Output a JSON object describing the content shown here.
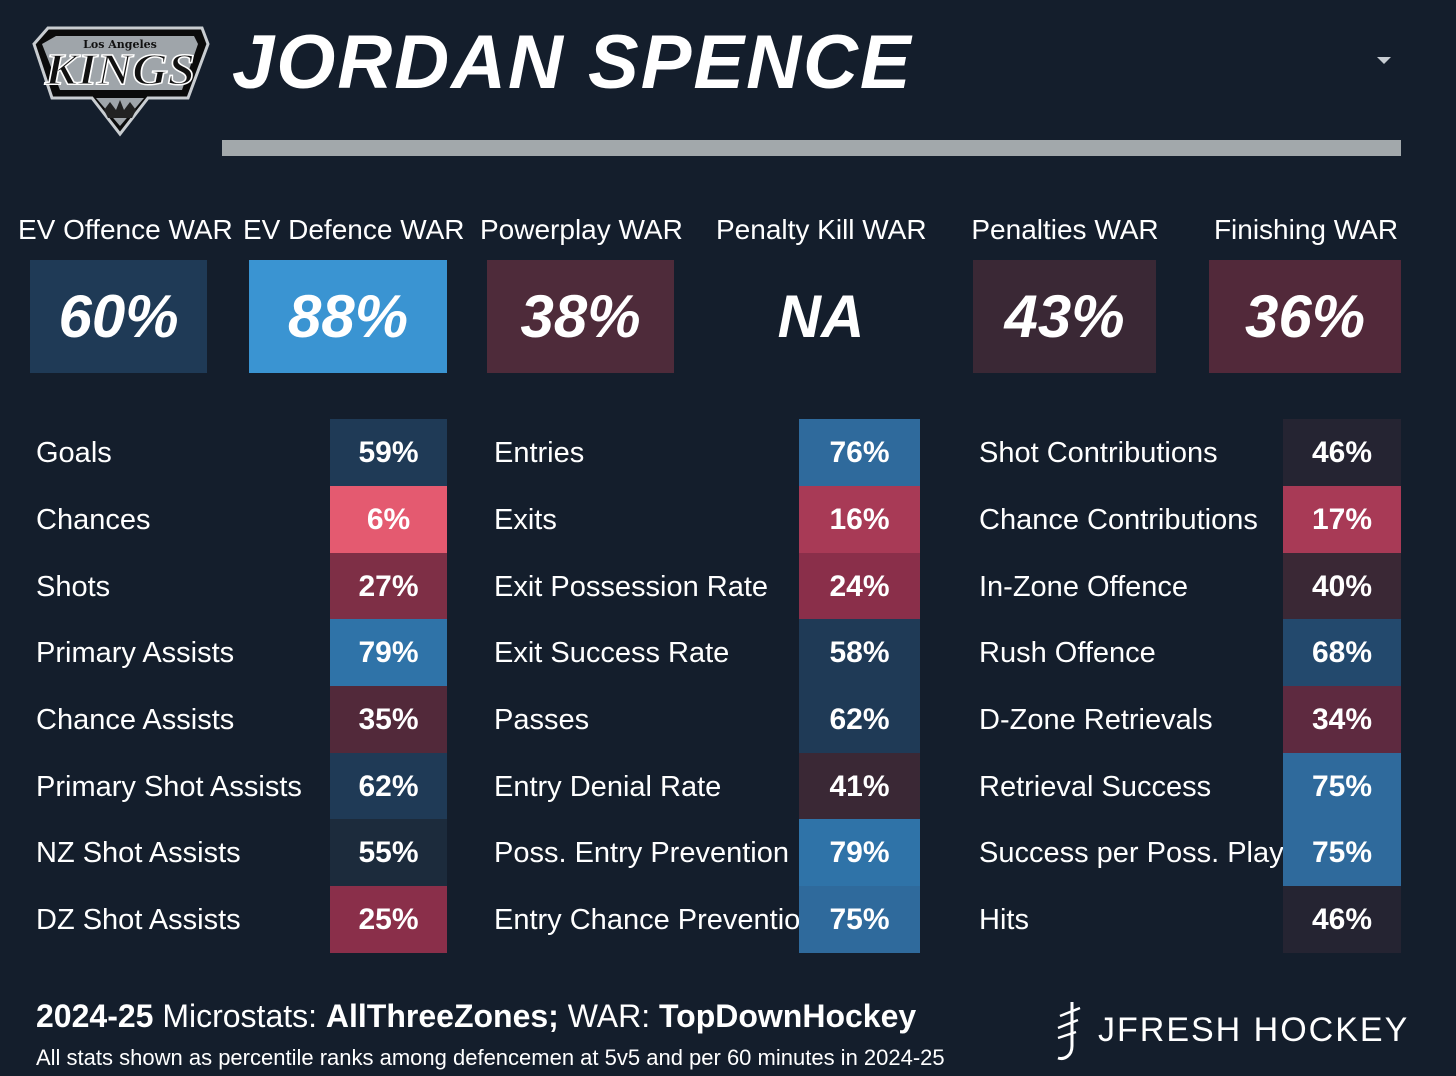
{
  "header": {
    "team_logo": {
      "name": "la-kings-logo",
      "lettering_top": "Los Angeles",
      "lettering_main": "KINGS"
    },
    "player_name": "JORDAN SPENCE"
  },
  "war": [
    {
      "label": "EV Offence WAR",
      "value": "60%",
      "color": "#1f3a56"
    },
    {
      "label": "EV Defence WAR",
      "value": "88%",
      "color": "#3a94d2"
    },
    {
      "label": "Powerplay WAR",
      "value": "38%",
      "color": "#4e2b3a"
    },
    {
      "label": "Penalty Kill WAR",
      "value": "NA",
      "color": "#141e2c"
    },
    {
      "label": "Penalties WAR",
      "value": "43%",
      "color": "#3a2835"
    },
    {
      "label": "Finishing WAR",
      "value": "36%",
      "color": "#52293a"
    }
  ],
  "stats": {
    "col1": [
      {
        "label": "Goals",
        "value": "59%",
        "color": "#1f3a56"
      },
      {
        "label": "Chances",
        "value": "6%",
        "color": "#e45a70"
      },
      {
        "label": "Shots",
        "value": "27%",
        "color": "#7e2f46"
      },
      {
        "label": "Primary Assists",
        "value": "79%",
        "color": "#2f73a8"
      },
      {
        "label": "Chance Assists",
        "value": "35%",
        "color": "#52293a"
      },
      {
        "label": "Primary Shot Assists",
        "value": "62%",
        "color": "#1f3a56"
      },
      {
        "label": "NZ Shot Assists",
        "value": "55%",
        "color": "#1c2b3c"
      },
      {
        "label": "DZ Shot Assists",
        "value": "25%",
        "color": "#8a2f4a"
      }
    ],
    "col2": [
      {
        "label": "Entries",
        "value": "76%",
        "color": "#2f6a9c"
      },
      {
        "label": "Exits",
        "value": "16%",
        "color": "#a83a56"
      },
      {
        "label": "Exit Possession Rate",
        "value": "24%",
        "color": "#8a2f4a"
      },
      {
        "label": "Exit Success Rate",
        "value": "58%",
        "color": "#1f3a56"
      },
      {
        "label": "Passes",
        "value": "62%",
        "color": "#1f3a56"
      },
      {
        "label": "Entry Denial Rate",
        "value": "41%",
        "color": "#3a2835"
      },
      {
        "label": "Poss. Entry Prevention",
        "value": "79%",
        "color": "#2f73a8"
      },
      {
        "label": "Entry Chance Prevention",
        "value": "75%",
        "color": "#2f6a9c"
      }
    ],
    "col3": [
      {
        "label": "Shot Contributions",
        "value": "46%",
        "color": "#252432"
      },
      {
        "label": "Chance Contributions",
        "value": "17%",
        "color": "#a83a56"
      },
      {
        "label": "In-Zone Offence",
        "value": "40%",
        "color": "#3a2835"
      },
      {
        "label": "Rush Offence",
        "value": "68%",
        "color": "#23496d"
      },
      {
        "label": "D-Zone Retrievals",
        "value": "34%",
        "color": "#5e2a40"
      },
      {
        "label": "Retrieval Success",
        "value": "75%",
        "color": "#2f6a9c"
      },
      {
        "label": "Success per Poss. Play",
        "value": "75%",
        "color": "#2f6a9c"
      },
      {
        "label": "Hits",
        "value": "46%",
        "color": "#252432"
      }
    ]
  },
  "footer": {
    "season": "2024-25",
    "microstats_label": "Microstats:",
    "microstats_source": "AllThreeZones;",
    "war_label": "WAR:",
    "war_source": "TopDownHockey",
    "note": "All stats shown as percentile ranks among defencemen at 5v5 and per 60 minutes in 2024-25",
    "brand": "JFRESH HOCKEY",
    "brand_icon": "jfresh-logo-icon"
  }
}
